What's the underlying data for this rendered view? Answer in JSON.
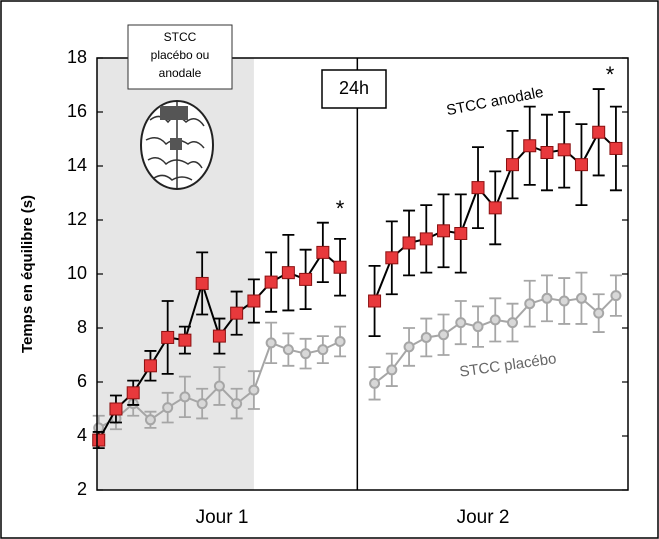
{
  "chart_data": {
    "type": "line",
    "y_label": "Temps en équilibre (s)",
    "x_groups": [
      "Jour 1",
      "Jour 2"
    ],
    "box_label": "24h",
    "stim_label": [
      "STCC",
      "placébo ou",
      "anodale"
    ],
    "series_labels": [
      "STCC anodale",
      "STCC placébo"
    ],
    "significance": [
      "*",
      "*"
    ],
    "x": [
      1,
      2,
      3,
      4,
      5,
      6,
      7,
      8,
      9,
      10,
      11,
      12,
      13,
      14,
      15,
      16,
      17,
      18,
      19,
      20,
      21,
      22,
      23,
      24,
      25,
      26,
      27,
      28,
      29,
      30,
      31
    ],
    "xlim": [
      0.9,
      31.7
    ],
    "ylim": [
      2,
      18
    ],
    "yticks": [
      2,
      4,
      6,
      8,
      10,
      12,
      14,
      16,
      18
    ],
    "shaded_span": [
      0.9,
      10
    ],
    "series": [
      {
        "name": "STCC anodale",
        "color": "#e8393c",
        "line_color": "#000000",
        "values": [
          3.85,
          5.0,
          5.6,
          6.6,
          7.65,
          7.55,
          9.65,
          7.7,
          8.55,
          9.0,
          9.7,
          10.05,
          9.8,
          10.8,
          10.25,
          null,
          9.0,
          10.6,
          11.15,
          11.3,
          11.6,
          11.5,
          13.2,
          12.45,
          14.05,
          14.75,
          14.5,
          14.6,
          14.05,
          15.25,
          14.65
        ],
        "errors": [
          0.3,
          0.5,
          0.45,
          0.55,
          1.35,
          0.5,
          1.15,
          0.65,
          0.8,
          0.8,
          1.1,
          1.4,
          1.1,
          1.1,
          1.05,
          null,
          1.3,
          1.35,
          1.2,
          1.25,
          1.35,
          1.45,
          1.5,
          1.35,
          1.25,
          1.45,
          1.4,
          1.4,
          1.5,
          1.6,
          1.55
        ]
      },
      {
        "name": "STCC placébo",
        "color": "#a6a6a6",
        "line_color": "#a6a6a6",
        "values": [
          4.3,
          4.65,
          5.2,
          4.6,
          5.05,
          5.45,
          5.2,
          5.85,
          5.2,
          5.7,
          7.45,
          7.2,
          7.05,
          7.2,
          7.5,
          null,
          5.95,
          6.45,
          7.3,
          7.65,
          7.75,
          8.2,
          8.05,
          8.3,
          8.2,
          8.9,
          9.1,
          9.0,
          9.1,
          8.55,
          9.2
        ],
        "errors": [
          0.45,
          0.4,
          0.45,
          0.3,
          0.55,
          0.75,
          0.55,
          0.7,
          0.55,
          0.7,
          0.75,
          0.6,
          0.55,
          0.5,
          0.55,
          null,
          0.6,
          0.6,
          0.7,
          0.7,
          0.75,
          0.8,
          0.75,
          0.8,
          0.7,
          0.85,
          0.85,
          0.85,
          0.95,
          0.7,
          0.75
        ]
      }
    ]
  }
}
